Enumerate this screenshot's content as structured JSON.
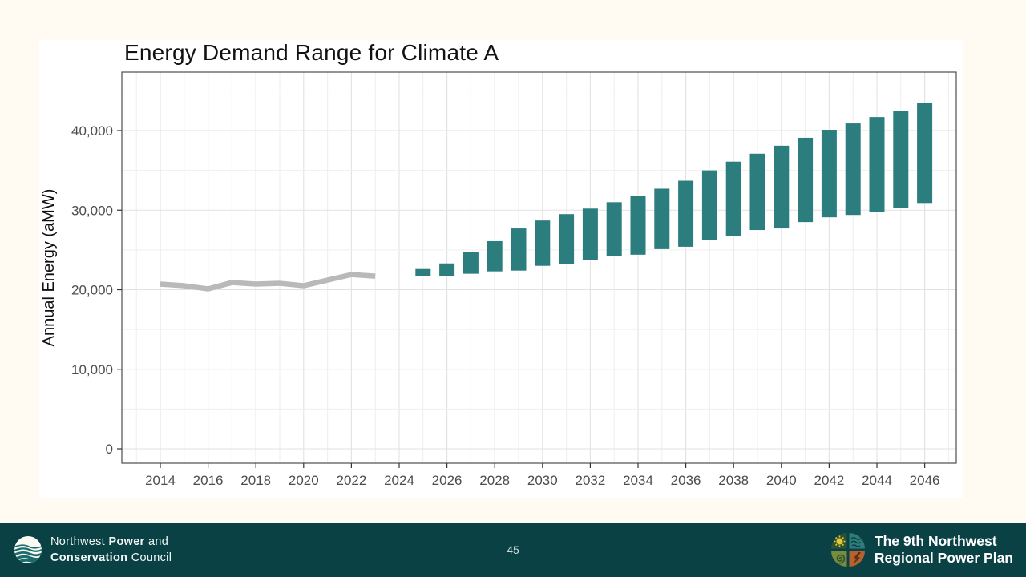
{
  "slide": {
    "background": "#FFFBF2",
    "card_background": "#FFFFFF"
  },
  "chart_data": {
    "type": "bar",
    "subtype": "historical line + forecast range bars",
    "title": "Energy Demand Range for Climate A",
    "xlabel": "",
    "ylabel": "Annual Energy (aMW)",
    "xlim": [
      2012.4,
      2047.4
    ],
    "ylim": [
      -1800,
      47350
    ],
    "x_tick_labels": [
      2014,
      2016,
      2018,
      2020,
      2022,
      2024,
      2026,
      2028,
      2030,
      2032,
      2034,
      2036,
      2038,
      2040,
      2042,
      2044,
      2046
    ],
    "y_tick_labels": [
      0,
      10000,
      20000,
      30000,
      40000
    ],
    "grid": "vertical line every year, horizontal major every 10000 with minor every 5000, light gray on white panel",
    "legend_position": "none",
    "colors": {
      "history_line": "#B9B9B9",
      "range_bar": "#2C7D7E",
      "panel_border": "#4D4D4D",
      "grid_major": "#E2E2E2",
      "grid_minor": "#EFEFEF",
      "tick_label": "#4D4D4D"
    },
    "series": [
      {
        "name": "historical demand",
        "type": "line",
        "x": [
          2014,
          2015,
          2016,
          2017,
          2018,
          2019,
          2020,
          2021,
          2022,
          2023
        ],
        "y": [
          20700,
          20500,
          20100,
          20900,
          20700,
          20800,
          20500,
          21200,
          21900,
          21700
        ]
      },
      {
        "name": "forecast demand range",
        "type": "range-bar",
        "x": [
          2025,
          2026,
          2027,
          2028,
          2029,
          2030,
          2031,
          2032,
          2033,
          2034,
          2035,
          2036,
          2037,
          2038,
          2039,
          2040,
          2041,
          2042,
          2043,
          2044,
          2045,
          2046
        ],
        "low": [
          21700,
          21700,
          22000,
          22300,
          22400,
          23000,
          23200,
          23700,
          24200,
          24400,
          25100,
          25400,
          26200,
          26800,
          27500,
          27700,
          28500,
          29100,
          29400,
          29800,
          30300,
          30900
        ],
        "high": [
          22600,
          23300,
          24700,
          26100,
          27700,
          28700,
          29500,
          30200,
          31000,
          31800,
          32700,
          33700,
          35000,
          36100,
          37100,
          38100,
          39100,
          40100,
          40900,
          41700,
          42500,
          43500
        ]
      }
    ]
  },
  "footer": {
    "background": "#0A4145",
    "page_number": "45",
    "org": {
      "l1a": "Northwest",
      "l1b": "Power",
      "l1c": "and",
      "l2a": "Conservation",
      "l2b": "Council"
    },
    "plan": {
      "line1": "The 9th Northwest",
      "line2": "Regional Power Plan"
    }
  }
}
